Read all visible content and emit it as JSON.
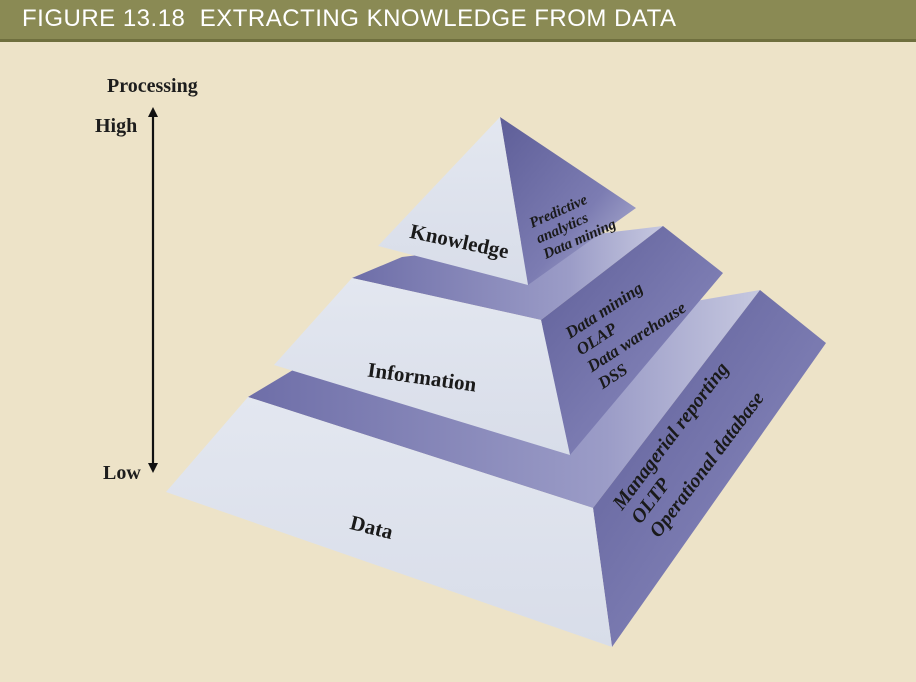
{
  "figure": {
    "title": "FIGURE 13.18  EXTRACTING KNOWLEDGE FROM DATA"
  },
  "axis": {
    "label": "Processing",
    "high_label": "High",
    "low_label": "Low"
  },
  "tiers": [
    {
      "name": "Knowledge",
      "items": [
        "Predictive",
        "analytics",
        "Data mining"
      ]
    },
    {
      "name": "Information",
      "items": [
        "Data mining",
        "OLAP",
        "Data warehouse",
        "DSS"
      ]
    },
    {
      "name": "Data",
      "items": [
        "Managerial reporting",
        "OLTP",
        "Operational database"
      ]
    }
  ],
  "colors": {
    "background": "#ede3c8",
    "title_bar": "#8a8a54",
    "front_face": "#dfe4ee",
    "band": "#8c8cba",
    "side_face": "#6e6ea4"
  }
}
